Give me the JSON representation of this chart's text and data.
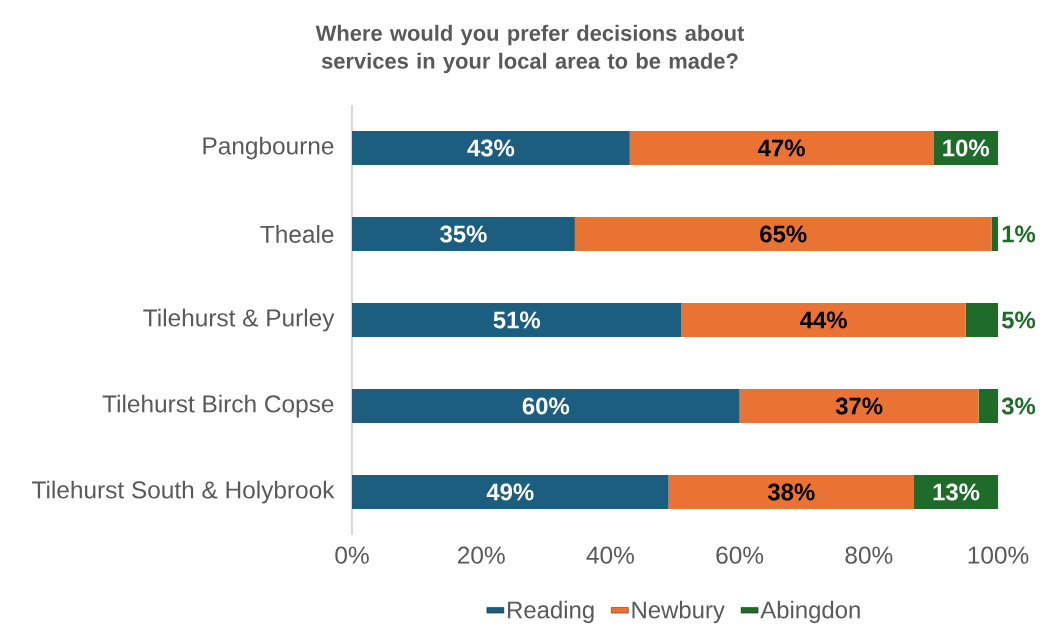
{
  "chart_data": {
    "type": "bar",
    "orientation": "horizontal",
    "stacked": true,
    "title": "Where would you prefer decisions about services in your local area to be made?",
    "categories": [
      "Pangbourne",
      "Theale",
      "Tilehurst & Purley",
      "Tilehurst Birch Copse",
      "Tilehurst South & Holybrook"
    ],
    "series": [
      {
        "name": "Reading",
        "color": "#1b5e80",
        "values": [
          43,
          34.5,
          51,
          60,
          49
        ],
        "value_labels": [
          "43%",
          "35%",
          "51%",
          "60%",
          "49%"
        ]
      },
      {
        "name": "Newbury",
        "color": "#ea7333",
        "values": [
          47,
          64.5,
          44,
          37,
          38
        ],
        "value_labels": [
          "47%",
          "65%",
          "44%",
          "37%",
          "38%"
        ]
      },
      {
        "name": "Abingdon",
        "color": "#1e6b2a",
        "values": [
          10,
          1,
          5,
          3,
          13
        ],
        "value_labels": [
          "10%",
          "1%",
          "5%",
          "3%",
          "13%"
        ]
      }
    ],
    "xlim": [
      0,
      100
    ],
    "xticks": [
      {
        "value": 0,
        "label": "0%"
      },
      {
        "value": 20,
        "label": "20%"
      },
      {
        "value": 40,
        "label": "40%"
      },
      {
        "value": 60,
        "label": "60%"
      },
      {
        "value": 80,
        "label": "80%"
      },
      {
        "value": 100,
        "label": "100%"
      }
    ],
    "legend": "bottom"
  }
}
